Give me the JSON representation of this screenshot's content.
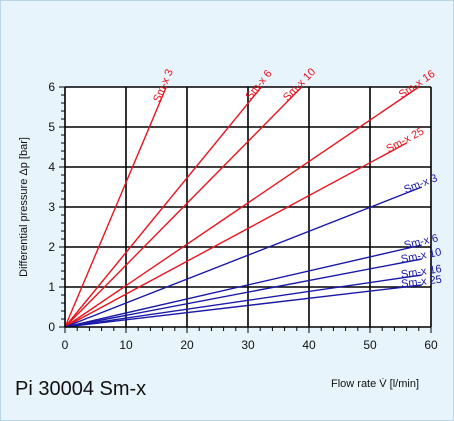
{
  "chart_data": {
    "type": "line",
    "xlabel": "Flow rate V̇ [l/min]",
    "ylabel": "Differential pressure Δp [bar]",
    "xlim": [
      0,
      60
    ],
    "ylim": [
      0,
      6
    ],
    "xticks": [
      0,
      10,
      20,
      30,
      40,
      50,
      60
    ],
    "yticks": [
      0,
      1,
      2,
      3,
      4,
      5,
      6
    ],
    "grid": true,
    "series": [
      {
        "name": "Sm-x 3",
        "color": "#e8141e",
        "x": [
          0,
          16.6
        ],
        "y": [
          0,
          6.0
        ]
      },
      {
        "name": "Sm-x 6",
        "color": "#e8141e",
        "x": [
          0,
          32.2
        ],
        "y": [
          0,
          6.0
        ]
      },
      {
        "name": "Sm-x 10",
        "color": "#e8141e",
        "x": [
          0,
          38.8
        ],
        "y": [
          0,
          6.0
        ]
      },
      {
        "name": "Sm-x 16",
        "color": "#e8141e",
        "x": [
          0,
          58.0
        ],
        "y": [
          0,
          6.0
        ]
      },
      {
        "name": "Sm-x 25",
        "color": "#e8141e",
        "x": [
          0,
          56.0
        ],
        "y": [
          0,
          4.6
        ]
      },
      {
        "name": "Sm-x 3",
        "color": "#1a1aa8",
        "x": [
          0,
          58.5
        ],
        "y": [
          0,
          3.5
        ]
      },
      {
        "name": "Sm-x 6",
        "color": "#1a1aa8",
        "x": [
          0,
          58.5
        ],
        "y": [
          0,
          2.05
        ]
      },
      {
        "name": "Sm-x 10",
        "color": "#1a1aa8",
        "x": [
          0,
          58.5
        ],
        "y": [
          0,
          1.7
        ]
      },
      {
        "name": "Sm-x 16",
        "color": "#1a1aa8",
        "x": [
          0,
          58.5
        ],
        "y": [
          0,
          1.3
        ]
      },
      {
        "name": "Sm-x 25",
        "color": "#1a1aa8",
        "x": [
          0,
          58.5
        ],
        "y": [
          0,
          1.05
        ]
      }
    ]
  },
  "model_label": "Pi 30004 Sm-x"
}
